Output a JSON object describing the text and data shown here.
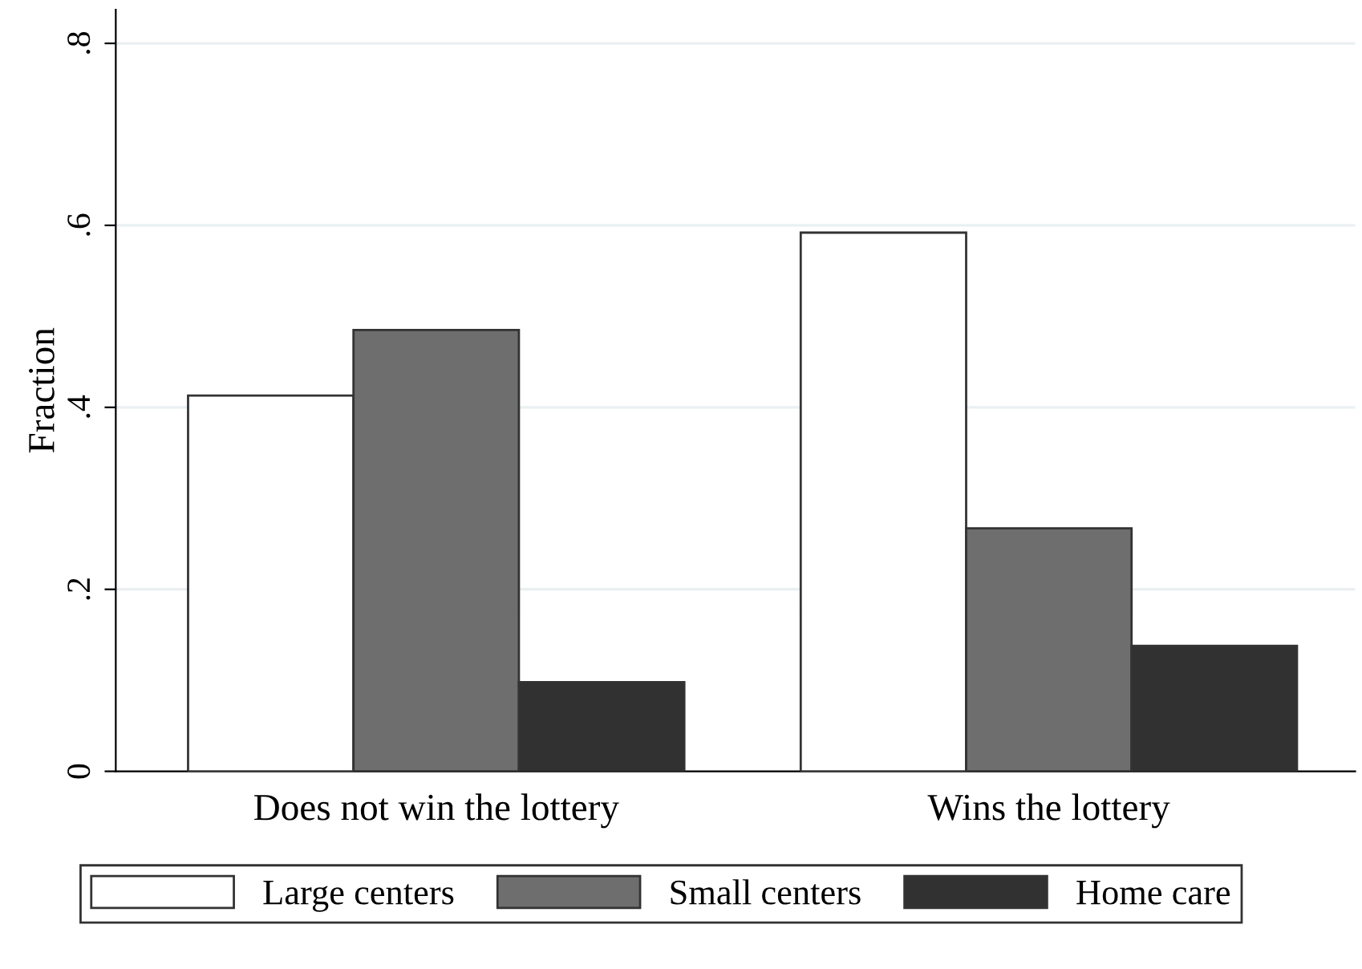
{
  "chart_data": {
    "type": "bar",
    "ylabel": "Fraction",
    "categories": [
      "Does not win the lottery",
      "Wins the lottery"
    ],
    "series": [
      {
        "name": "Large centers",
        "color": "#ffffff",
        "values": [
          0.413,
          0.592
        ]
      },
      {
        "name": "Small centers",
        "color": "#6e6e6e",
        "values": [
          0.485,
          0.267
        ]
      },
      {
        "name": "Home care",
        "color": "#313131",
        "values": [
          0.098,
          0.138
        ]
      }
    ],
    "ylim": [
      0,
      0.837
    ],
    "yticks": [
      {
        "value": 0,
        "label": "0"
      },
      {
        "value": 0.2,
        "label": ".2"
      },
      {
        "value": 0.4,
        "label": ".4"
      },
      {
        "value": 0.6,
        "label": ".6"
      },
      {
        "value": 0.8,
        "label": ".8"
      }
    ],
    "grid": "y",
    "legend": "bottom"
  }
}
